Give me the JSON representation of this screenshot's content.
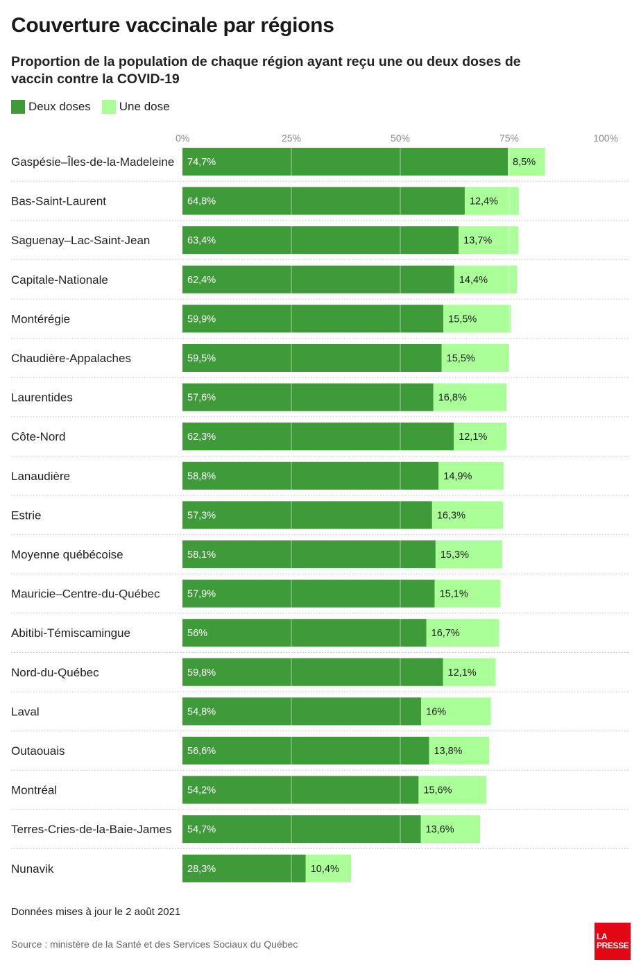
{
  "title": "Couverture vaccinale par régions",
  "subtitle": "Proportion de la population de chaque région ayant reçu une ou deux doses de vaccin contre la COVID-19",
  "footnote": "Données mises à jour le 2 août 2021",
  "source": "Source : ministère de la Santé et des Services Sociaux du Québec",
  "logo": {
    "line1": "LA",
    "line2": "PRESSE"
  },
  "colors": {
    "deux_doses": "#3f9a3a",
    "une_dose": "#aaff99",
    "gridline": "#ffffff",
    "separator": "#bdbdbd",
    "label": "#222222",
    "axis": "#888888"
  },
  "chart_data": {
    "type": "bar",
    "orientation": "horizontal",
    "stacked": true,
    "categories": [
      "Gaspésie–Îles-de-la-Madeleine",
      "Bas-Saint-Laurent",
      "Saguenay–Lac-Saint-Jean",
      "Capitale-Nationale",
      "Montérégie",
      "Chaudière-Appalaches",
      "Laurentides",
      "Côte-Nord",
      "Lanaudière",
      "Estrie",
      "Moyenne québécoise",
      "Mauricie–Centre-du-Québec",
      "Abitibi-Témiscamingue",
      "Nord-du-Québec",
      "Laval",
      "Outaouais",
      "Montréal",
      "Terres-Cries-de-la-Baie-James",
      "Nunavik"
    ],
    "series": [
      {
        "name": "Deux doses",
        "values": [
          74.7,
          64.8,
          63.4,
          62.4,
          59.9,
          59.5,
          57.6,
          62.3,
          58.8,
          57.3,
          58.1,
          57.9,
          56,
          59.8,
          54.8,
          56.6,
          54.2,
          54.7,
          28.3
        ],
        "labels": [
          "74,7%",
          "64,8%",
          "63,4%",
          "62,4%",
          "59,9%",
          "59,5%",
          "57,6%",
          "62,3%",
          "58,8%",
          "57,3%",
          "58,1%",
          "57,9%",
          "56%",
          "59,8%",
          "54,8%",
          "56,6%",
          "54,2%",
          "54,7%",
          "28,3%"
        ]
      },
      {
        "name": "Une dose",
        "values": [
          8.5,
          12.4,
          13.7,
          14.4,
          15.5,
          15.5,
          16.8,
          12.1,
          14.9,
          16.3,
          15.3,
          15.1,
          16.7,
          12.1,
          16,
          13.8,
          15.6,
          13.6,
          10.4
        ],
        "labels": [
          "8,5%",
          "12,4%",
          "13,7%",
          "14,4%",
          "15,5%",
          "15,5%",
          "16,8%",
          "12,1%",
          "14,9%",
          "16,3%",
          "15,3%",
          "15,1%",
          "16,7%",
          "12,1%",
          "16%",
          "13,8%",
          "15,6%",
          "13,6%",
          "10,4%"
        ]
      }
    ],
    "xlim": [
      0,
      100
    ],
    "xticks": [
      0,
      25,
      50,
      75,
      100
    ],
    "xtick_labels": [
      "0%",
      "25%",
      "50%",
      "75%",
      "100%"
    ],
    "legend_position": "top-left",
    "grid": true
  }
}
